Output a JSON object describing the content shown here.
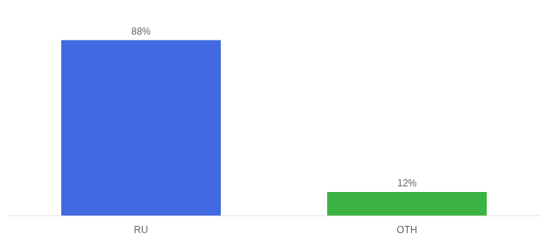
{
  "chart_data": {
    "type": "bar",
    "categories": [
      "RU",
      "OTH"
    ],
    "values": [
      88,
      12
    ],
    "value_labels": [
      "88%",
      "12%"
    ],
    "colors": [
      "#4169e1",
      "#3cb443"
    ],
    "ylim": [
      0,
      100
    ],
    "grid": false,
    "data_labels": true,
    "tick_labels": "x"
  }
}
